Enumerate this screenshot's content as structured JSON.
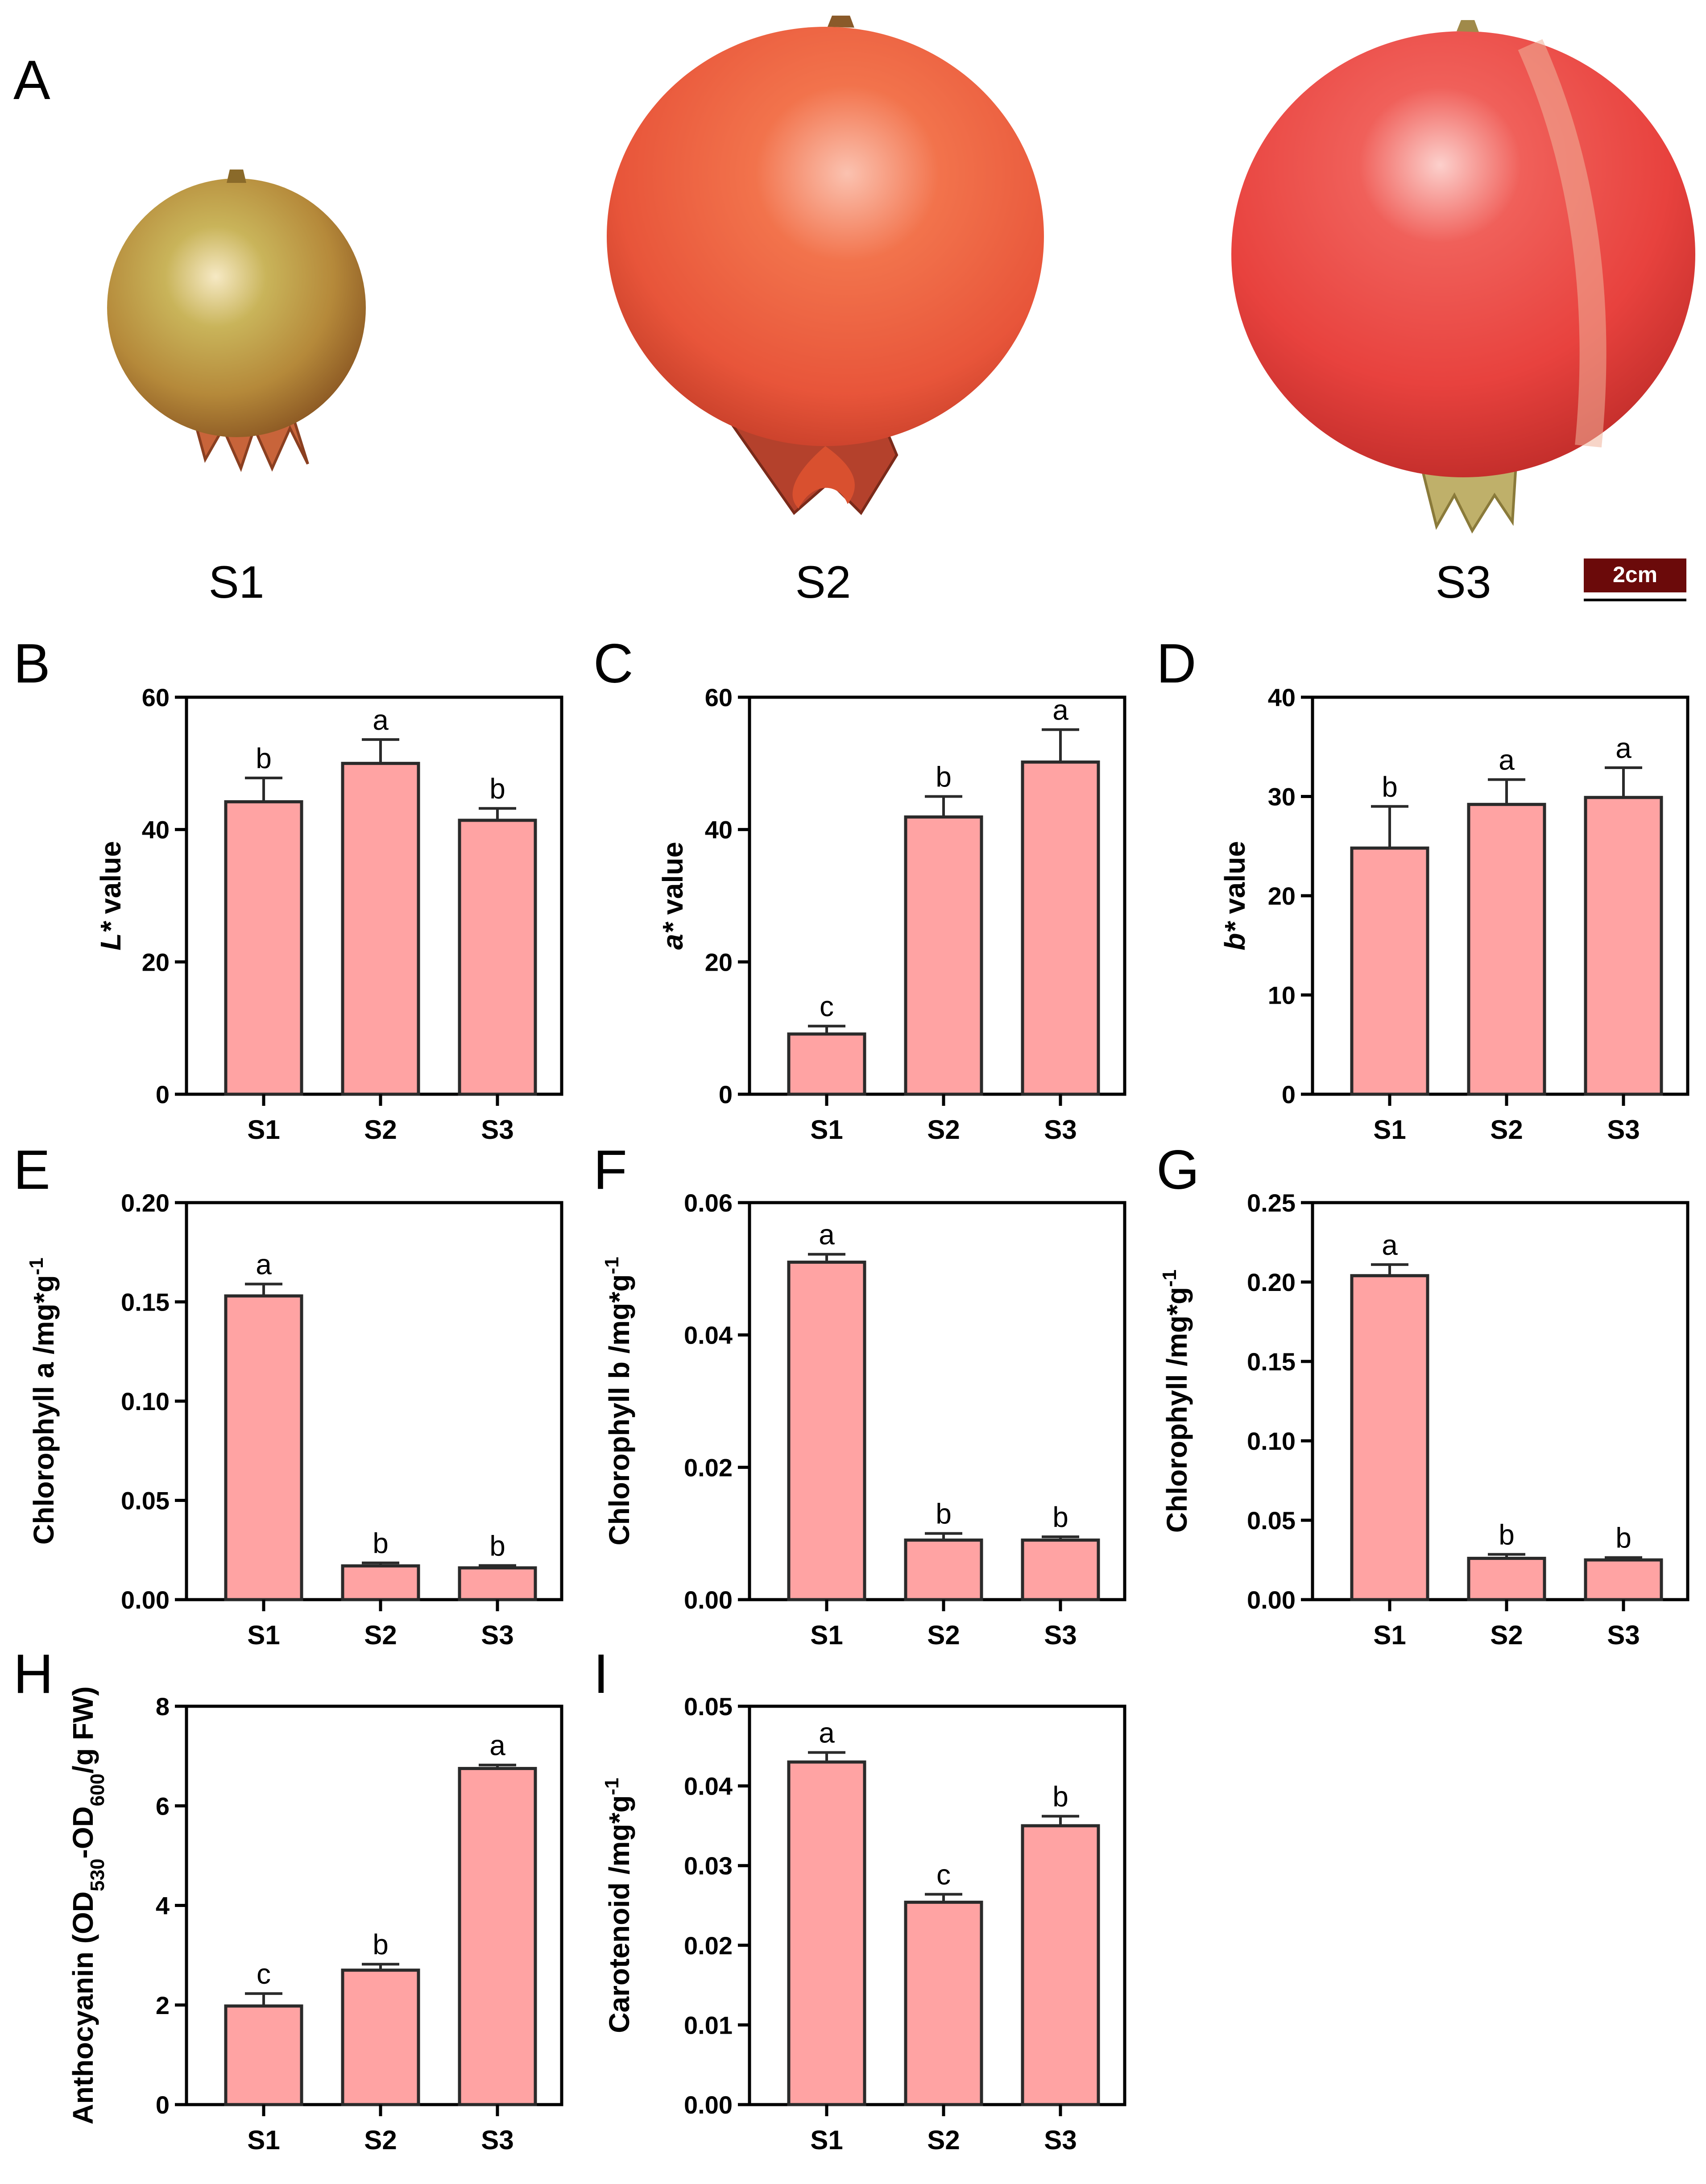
{
  "figure": {
    "photo_panel": {
      "letter": "A",
      "fruits": [
        {
          "label": "S1",
          "skin": "#b99a44",
          "blush": "#d4583a"
        },
        {
          "label": "S2",
          "skin": "#ee5a3a",
          "blush": "#f08a66"
        },
        {
          "label": "S3",
          "skin": "#ec4a42",
          "blush": "#f48a80"
        }
      ],
      "scale_bar": {
        "label": "2cm",
        "color": "#6b0a0a"
      }
    },
    "colors": {
      "bar_fill": "#ffa3a3",
      "bar_stroke": "#2a2a2a",
      "axis": "#000000"
    }
  },
  "chart_data": [
    {
      "panel": "B",
      "type": "bar",
      "ylabel_italic": "L*",
      "ylabel": " value",
      "categories": [
        "S1",
        "S2",
        "S3"
      ],
      "values": [
        44.2,
        50.0,
        41.4
      ],
      "errors": [
        3.6,
        3.6,
        1.8
      ],
      "significance": [
        "b",
        "a",
        "b"
      ],
      "ylim": [
        0,
        60
      ],
      "yticks": [
        "0",
        "20",
        "40",
        "60"
      ]
    },
    {
      "panel": "C",
      "type": "bar",
      "ylabel_italic": "a*",
      "ylabel": " value",
      "categories": [
        "S1",
        "S2",
        "S3"
      ],
      "values": [
        9.1,
        41.9,
        50.2
      ],
      "errors": [
        1.2,
        3.1,
        4.9
      ],
      "significance": [
        "c",
        "b",
        "a"
      ],
      "ylim": [
        0,
        60
      ],
      "yticks": [
        "0",
        "20",
        "40",
        "60"
      ]
    },
    {
      "panel": "D",
      "type": "bar",
      "ylabel_italic": "b*",
      "ylabel": " value",
      "categories": [
        "S1",
        "S2",
        "S3"
      ],
      "values": [
        24.8,
        29.2,
        29.9
      ],
      "errors": [
        4.2,
        2.5,
        3.0
      ],
      "significance": [
        "b",
        "a",
        "a"
      ],
      "ylim": [
        0,
        40
      ],
      "yticks": [
        "0",
        "10",
        "20",
        "30",
        "40"
      ]
    },
    {
      "panel": "E",
      "type": "bar",
      "ylabel": "Chlorophyll a /mg*g",
      "ylabel_sup": "-1",
      "categories": [
        "S1",
        "S2",
        "S3"
      ],
      "values": [
        0.153,
        0.017,
        0.016
      ],
      "errors": [
        0.006,
        0.0015,
        0.0012
      ],
      "significance": [
        "a",
        "b",
        "b"
      ],
      "ylim": [
        0,
        0.2
      ],
      "yticks": [
        "0.00",
        "0.05",
        "0.10",
        "0.15",
        "0.20"
      ]
    },
    {
      "panel": "F",
      "type": "bar",
      "ylabel": "Chlorophyll b /mg*g",
      "ylabel_sup": "-1",
      "categories": [
        "S1",
        "S2",
        "S3"
      ],
      "values": [
        0.051,
        0.009,
        0.009
      ],
      "errors": [
        0.0012,
        0.001,
        0.0005
      ],
      "significance": [
        "a",
        "b",
        "b"
      ],
      "ylim": [
        0,
        0.06
      ],
      "yticks": [
        "0.00",
        "0.02",
        "0.04",
        "0.06"
      ]
    },
    {
      "panel": "G",
      "type": "bar",
      "ylabel": "Chlorophyll /mg*g",
      "ylabel_sup": "-1",
      "categories": [
        "S1",
        "S2",
        "S3"
      ],
      "values": [
        0.204,
        0.026,
        0.025
      ],
      "errors": [
        0.007,
        0.0025,
        0.0015
      ],
      "significance": [
        "a",
        "b",
        "b"
      ],
      "ylim": [
        0,
        0.25
      ],
      "yticks": [
        "0.00",
        "0.05",
        "0.10",
        "0.15",
        "0.20",
        "0.25"
      ]
    },
    {
      "panel": "H",
      "type": "bar",
      "ylabel_segments": [
        {
          "t": "Anthocyanin (OD"
        },
        {
          "t": "530",
          "sub": true
        },
        {
          "t": "-OD"
        },
        {
          "t": "600",
          "sub": true
        },
        {
          "t": "/g FW)"
        }
      ],
      "categories": [
        "S1",
        "S2",
        "S3"
      ],
      "values": [
        1.98,
        2.7,
        6.75
      ],
      "errors": [
        0.25,
        0.12,
        0.07
      ],
      "significance": [
        "c",
        "b",
        "a"
      ],
      "ylim": [
        0,
        8
      ],
      "yticks": [
        "0",
        "2",
        "4",
        "6",
        "8"
      ]
    },
    {
      "panel": "I",
      "type": "bar",
      "ylabel": "Carotenoid /mg*g",
      "ylabel_sup": "-1",
      "categories": [
        "S1",
        "S2",
        "S3"
      ],
      "values": [
        0.043,
        0.0254,
        0.035
      ],
      "errors": [
        0.0012,
        0.001,
        0.0012
      ],
      "significance": [
        "a",
        "c",
        "b"
      ],
      "ylim": [
        0,
        0.05
      ],
      "yticks": [
        "0.00",
        "0.01",
        "0.02",
        "0.03",
        "0.04",
        "0.05"
      ]
    }
  ]
}
